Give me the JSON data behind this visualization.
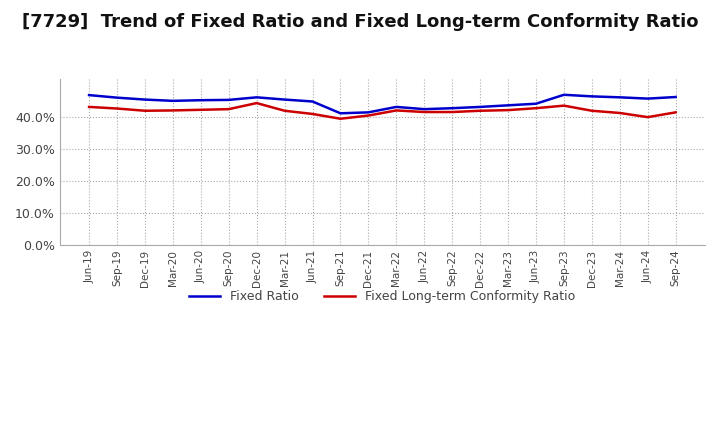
{
  "title": "[7729]  Trend of Fixed Ratio and Fixed Long-term Conformity Ratio",
  "title_fontsize": 13,
  "xlabel": "",
  "ylabel": "",
  "ylim": [
    0,
    0.52
  ],
  "yticks": [
    0.0,
    0.1,
    0.2,
    0.3,
    0.4
  ],
  "background_color": "#ffffff",
  "grid_color": "#aaaaaa",
  "fixed_ratio_color": "#0000cc",
  "fixed_lt_color": "#cc0000",
  "legend_labels": [
    "Fixed Ratio",
    "Fixed Long-term Conformity Ratio"
  ],
  "x_labels": [
    "Jun-19",
    "Sep-19",
    "Dec-19",
    "Mar-20",
    "Jun-20",
    "Sep-20",
    "Dec-20",
    "Mar-21",
    "Jun-21",
    "Sep-21",
    "Dec-21",
    "Mar-22",
    "Jun-22",
    "Sep-22",
    "Dec-22",
    "Mar-23",
    "Jun-23",
    "Sep-23",
    "Dec-23",
    "Mar-24",
    "Jun-24",
    "Sep-24"
  ],
  "fixed_ratio": [
    0.469,
    0.461,
    0.455,
    0.451,
    0.453,
    0.454,
    0.462,
    0.455,
    0.449,
    0.412,
    0.415,
    0.432,
    0.425,
    0.428,
    0.432,
    0.437,
    0.442,
    0.47,
    0.465,
    0.462,
    0.458,
    0.463
  ],
  "fixed_lt_ratio": [
    0.432,
    0.427,
    0.42,
    0.421,
    0.423,
    0.425,
    0.444,
    0.42,
    0.41,
    0.395,
    0.405,
    0.421,
    0.416,
    0.416,
    0.42,
    0.422,
    0.428,
    0.436,
    0.42,
    0.413,
    0.4,
    0.415
  ]
}
